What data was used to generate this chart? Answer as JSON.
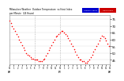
{
  "background_color": "#ffffff",
  "plot_bg_color": "#ffffff",
  "legend_labels": [
    "Outdoor Temp",
    "Heat Index"
  ],
  "legend_colors": [
    "#0000cc",
    "#cc0000"
  ],
  "xlim": [
    0,
    143
  ],
  "ylim": [
    42,
    78
  ],
  "yticks": [
    45,
    50,
    55,
    60,
    65,
    70,
    75
  ],
  "ytick_labels": [
    "45",
    "50",
    "55",
    "60",
    "65",
    "70",
    "75"
  ],
  "xtick_positions": [
    0,
    6,
    12,
    18,
    24,
    30,
    36,
    42,
    48,
    54,
    60,
    66,
    72,
    78,
    84,
    90,
    96,
    102,
    108,
    114,
    120,
    126,
    132,
    138,
    143
  ],
  "xtick_labels": [
    "12\nAM",
    "1",
    "2",
    "3",
    "4",
    "5",
    "6",
    "7",
    "8",
    "9",
    "10",
    "11",
    "12\nPM",
    "1",
    "2",
    "3",
    "4",
    "5",
    "6",
    "7",
    "8",
    "9",
    "10",
    "11",
    "12\nAM"
  ],
  "vline_positions": [
    36,
    72
  ],
  "dot_color": "#ff0000",
  "dot_size": 1.2,
  "vline_color": "#aaaaaa",
  "temp_y": [
    74,
    73,
    72,
    71,
    70,
    69,
    68,
    67,
    66,
    65,
    64,
    63,
    62,
    61,
    60,
    59,
    58,
    57,
    56,
    55,
    54,
    53,
    52,
    51,
    50,
    49,
    49,
    48,
    48,
    47,
    47,
    47,
    46,
    46,
    46,
    46,
    45,
    45,
    45,
    45,
    45,
    45,
    44,
    44,
    44,
    44,
    44,
    44,
    45,
    45,
    46,
    47,
    48,
    49,
    50,
    51,
    52,
    53,
    54,
    55,
    56,
    57,
    58,
    59,
    60,
    61,
    62,
    63,
    63,
    64,
    64,
    65,
    65,
    65,
    66,
    66,
    66,
    65,
    65,
    65,
    64,
    64,
    63,
    62,
    61,
    60,
    59,
    58,
    57,
    56,
    55,
    54,
    53,
    52,
    51,
    50,
    49,
    48,
    47,
    46,
    45,
    45,
    45,
    44,
    44,
    44,
    44,
    44,
    43,
    43,
    43,
    43,
    44,
    44,
    45,
    46,
    47,
    48,
    49,
    50,
    51,
    52,
    53,
    54,
    55,
    56,
    57,
    58,
    59,
    60,
    61,
    62,
    63,
    63,
    62,
    62,
    61,
    60,
    59,
    58,
    57,
    56,
    55,
    54
  ]
}
